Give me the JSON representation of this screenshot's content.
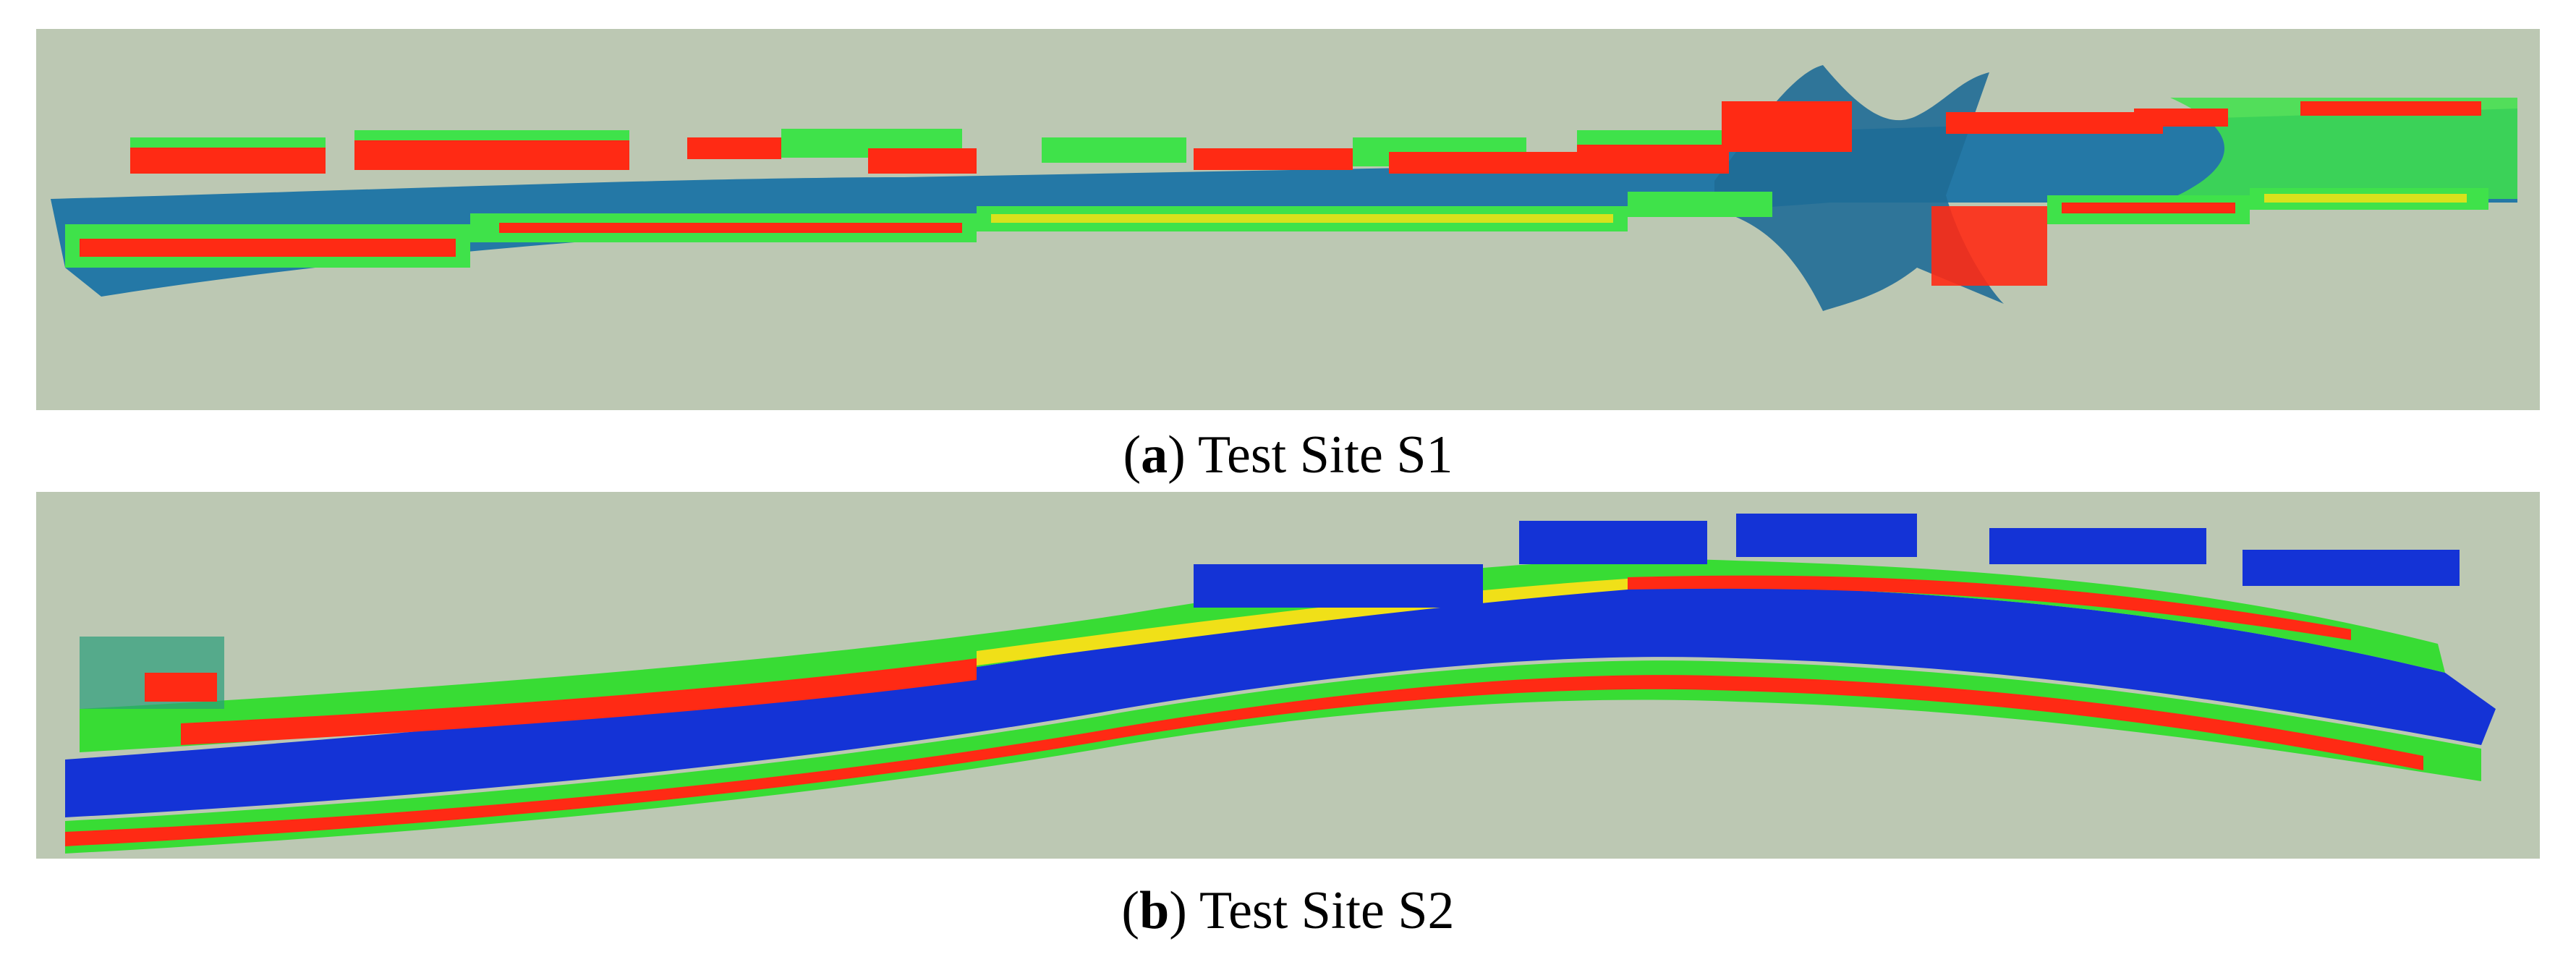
{
  "figure": {
    "panels": [
      {
        "label": "a",
        "caption": "Test Site S1",
        "colors": {
          "background": "#bcc8b3",
          "road": "#2478a6",
          "road_dark": "#1f6c96",
          "low": "#2aa06a",
          "mid": "#3fe24a",
          "high_mid": "#d8e21c",
          "high": "#ff2a14"
        }
      },
      {
        "label": "b",
        "caption": "Test Site S2",
        "colors": {
          "background": "#bcc8b3",
          "road": "#1433d6",
          "low": "#2a9c7a",
          "mid": "#38dc34",
          "high_mid": "#f0e018",
          "high": "#ff2a14"
        }
      }
    ]
  }
}
